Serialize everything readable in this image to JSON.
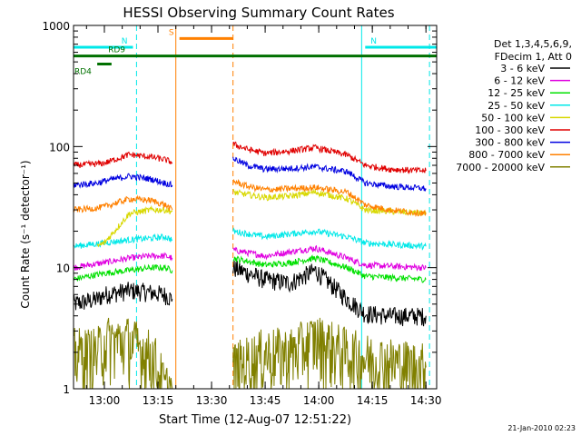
{
  "chart_data": {
    "type": "line",
    "title": "HESSI Observing Summary Count Rates",
    "xlabel": "Start Time (12-Aug-07 12:51:22)",
    "ylabel": "Count Rate (s⁻¹ detector⁻¹)",
    "yscale": "log",
    "ylim": [
      1,
      1000
    ],
    "xlim": [
      "12:51:22",
      "14:33:00"
    ],
    "x_ticks": [
      "13:00",
      "13:15",
      "13:30",
      "13:45",
      "14:00",
      "14:15",
      "14:30"
    ],
    "y_ticks": [
      "1",
      "10",
      "100",
      "1000"
    ],
    "legend": {
      "placement": "right",
      "header": [
        "Det 1,3,4,5,6,9,",
        "FDecim 1, Att 0"
      ]
    },
    "series": [
      {
        "name": "3 - 6 keV",
        "color": "#000000",
        "x": [
          "12:51",
          "12:58",
          "13:00",
          "13:07",
          "13:12",
          "13:17",
          "13:19",
          "13:36",
          "13:45",
          "13:52",
          "13:59",
          "14:03",
          "14:08",
          "14:13",
          "14:20",
          "14:30"
        ],
        "values": [
          5,
          5.5,
          6,
          6.5,
          6.3,
          6,
          5.5,
          10,
          8,
          7.5,
          9.5,
          7.5,
          5.5,
          4.2,
          4,
          4
        ]
      },
      {
        "name": "6 - 12 keV",
        "color": "#e000e0",
        "x": [
          "12:51",
          "13:00",
          "13:07",
          "13:13",
          "13:17",
          "13:19",
          "13:36",
          "13:45",
          "13:52",
          "13:59",
          "14:08",
          "14:13",
          "14:30"
        ],
        "values": [
          10,
          11,
          12,
          12.5,
          12.5,
          12,
          14,
          12.5,
          13.5,
          14.5,
          12,
          10.5,
          10
        ]
      },
      {
        "name": "12 - 25 keV",
        "color": "#00e000",
        "x": [
          "12:51",
          "13:00",
          "13:07",
          "13:13",
          "13:17",
          "13:19",
          "13:36",
          "13:45",
          "13:52",
          "13:59",
          "14:08",
          "14:13",
          "14:30"
        ],
        "values": [
          8,
          9,
          9.5,
          10,
          10,
          9.5,
          12,
          10.5,
          11,
          12,
          10,
          8.5,
          8
        ]
      },
      {
        "name": "25 - 50 keV",
        "color": "#00e8e8",
        "x": [
          "12:51",
          "13:00",
          "13:07",
          "13:13",
          "13:17",
          "13:19",
          "13:36",
          "13:45",
          "13:52",
          "13:59",
          "14:08",
          "14:13",
          "14:30"
        ],
        "values": [
          15,
          16,
          17,
          17.5,
          18,
          17,
          20,
          18,
          19,
          20,
          18,
          16,
          15
        ]
      },
      {
        "name": "50 - 100 keV",
        "color": "#d8d800",
        "x": [
          "12:58",
          "13:00",
          "13:07",
          "13:13",
          "13:17",
          "13:19",
          "13:36",
          "13:45",
          "13:52",
          "13:59",
          "14:08",
          "14:13",
          "14:30"
        ],
        "values": [
          15,
          16,
          28,
          30,
          30,
          29,
          42,
          38,
          39,
          42,
          37,
          30,
          28
        ]
      },
      {
        "name": "100 - 300 keV",
        "color": "#e00000",
        "x": [
          "12:51",
          "12:58",
          "13:00",
          "13:07",
          "13:13",
          "13:17",
          "13:19",
          "13:36",
          "13:40",
          "13:45",
          "13:52",
          "13:59",
          "14:08",
          "14:13",
          "14:20",
          "14:30"
        ],
        "values": [
          70,
          72,
          73,
          86,
          82,
          78,
          74,
          105,
          95,
          88,
          92,
          98,
          85,
          70,
          65,
          63
        ]
      },
      {
        "name": "300 - 800 keV",
        "color": "#0000e0",
        "x": [
          "12:51",
          "12:58",
          "13:00",
          "13:07",
          "13:13",
          "13:17",
          "13:19",
          "13:36",
          "13:40",
          "13:45",
          "13:52",
          "13:59",
          "14:08",
          "14:13",
          "14:20",
          "14:30"
        ],
        "values": [
          48,
          50,
          52,
          57,
          54,
          50,
          48,
          80,
          70,
          65,
          66,
          68,
          62,
          50,
          47,
          45
        ]
      },
      {
        "name": "800 - 7000 keV",
        "color": "#ff8000",
        "x": [
          "12:51",
          "12:58",
          "13:00",
          "13:07",
          "13:13",
          "13:17",
          "13:19",
          "13:36",
          "13:40",
          "13:45",
          "13:52",
          "13:59",
          "14:08",
          "14:13",
          "14:20",
          "14:30"
        ],
        "values": [
          30,
          31,
          32,
          37,
          36,
          33,
          30,
          52,
          47,
          44,
          45,
          46,
          42,
          33,
          30,
          28
        ]
      },
      {
        "name": "7000 - 20000 keV",
        "color": "#808000",
        "x": [
          "12:51",
          "12:58",
          "13:00",
          "13:07",
          "13:12",
          "13:14",
          "13:17",
          "13:19",
          "13:36",
          "13:45",
          "13:52",
          "13:59",
          "14:08",
          "14:13",
          "14:30"
        ],
        "values": [
          2,
          2,
          2.5,
          2.5,
          2,
          1.8,
          1,
          1,
          1.5,
          2,
          2,
          2.6,
          2,
          1.8,
          1.5
        ]
      }
    ],
    "annotations": [
      {
        "label": "N",
        "color": "#00e8e8",
        "y": 660,
        "x_start": "12:51",
        "x_end": "13:08"
      },
      {
        "label": "N",
        "color": "#00e8e8",
        "y": 660,
        "x_start": "14:13",
        "x_end": "14:33"
      },
      {
        "label": "S",
        "color": "#ff8000",
        "y": 780,
        "x_start": "13:21",
        "x_end": "13:36"
      },
      {
        "label": "RD9",
        "color": "#007000",
        "y": 560,
        "x_start": "12:51",
        "x_end": "14:33"
      },
      {
        "label": "RD4",
        "color": "#007000",
        "y": 480,
        "x_start": "12:58",
        "x_end": "13:02"
      }
    ],
    "vertical_markers": [
      {
        "x": "13:09",
        "color": "#00e8e8",
        "style": "dashed"
      },
      {
        "x": "13:20",
        "color": "#ff8000",
        "style": "solid"
      },
      {
        "x": "13:36",
        "color": "#ff8000",
        "style": "dashed"
      },
      {
        "x": "14:12",
        "color": "#00e8e8",
        "style": "solid"
      },
      {
        "x": "14:31",
        "color": "#00e8e8",
        "style": "dashed"
      }
    ],
    "grid": false
  },
  "footer_timestamp": "21-Jan-2010 02:23"
}
